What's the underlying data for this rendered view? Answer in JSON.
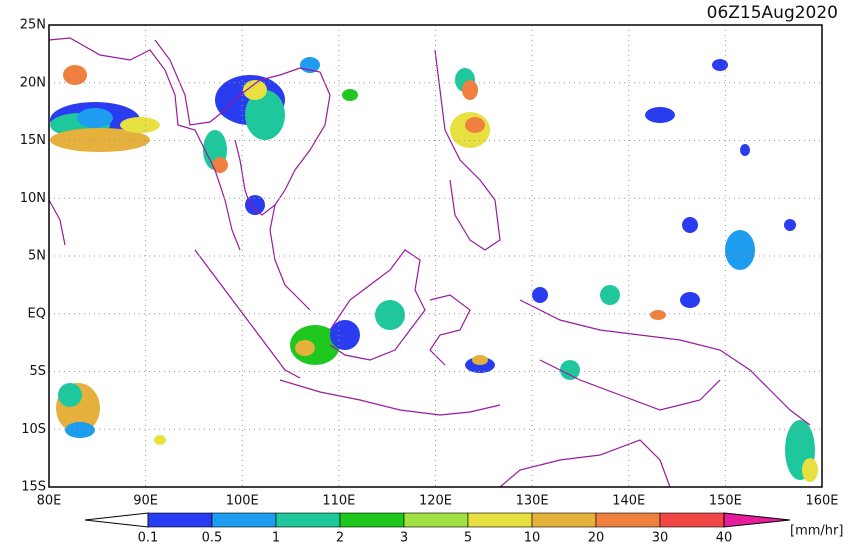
{
  "title": "06Z15Aug2020",
  "lat_labels": [
    "25N",
    "20N",
    "15N",
    "10N",
    "5N",
    "EQ",
    "5S",
    "10S",
    "15S"
  ],
  "lon_labels": [
    "80E",
    "90E",
    "100E",
    "110E",
    "120E",
    "130E",
    "140E",
    "150E",
    "160E"
  ],
  "colorbar": {
    "labels": [
      "0.1",
      "0.5",
      "1",
      "2",
      "3",
      "5",
      "10",
      "20",
      "30",
      "40"
    ],
    "colors": [
      "#2a3cf0",
      "#1e9cf0",
      "#1ec89c",
      "#1ec81e",
      "#a0e040",
      "#e6e040",
      "#e6b03c",
      "#f08040",
      "#f04646",
      "#e61e9c"
    ],
    "unit": "[mm/hr]"
  }
}
